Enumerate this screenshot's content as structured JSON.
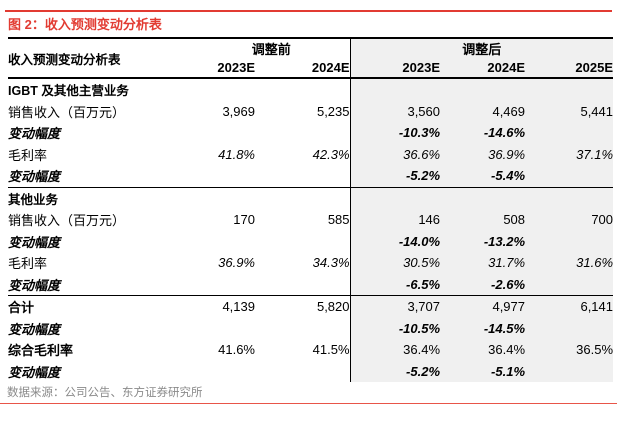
{
  "page": {
    "title": "图 2：收入预测变动分析表",
    "source_note": "数据来源：公司公告、东方证券研究所"
  },
  "colors": {
    "accent_red": "#e23b32",
    "shaded_column_bg": "#f0f0f0",
    "muted_text": "#8a8a8a",
    "table_border": "#000000"
  },
  "table": {
    "corner_label": "收入预测变动分析表",
    "groups": [
      {
        "label": "调整前",
        "span": 2
      },
      {
        "label": "调整后",
        "span": 3
      }
    ],
    "year_headers": [
      "2023E",
      "2024E",
      "2023E",
      "2024E",
      "2025E"
    ],
    "rows": [
      {
        "label": "IGBT 及其他主营业务",
        "style": "section",
        "divider": false,
        "values": [
          "",
          "",
          "",
          "",
          ""
        ]
      },
      {
        "label": "销售收入（百万元）",
        "style": "plain",
        "divider": false,
        "values": [
          "3,969",
          "5,235",
          "3,560",
          "4,469",
          "5,441"
        ]
      },
      {
        "label": "变动幅度",
        "style": "delta",
        "divider": false,
        "values": [
          "",
          "",
          "-10.3%",
          "-14.6%",
          ""
        ]
      },
      {
        "label": "毛利率",
        "style": "rate",
        "divider": false,
        "values": [
          "41.8%",
          "42.3%",
          "36.6%",
          "36.9%",
          "37.1%"
        ]
      },
      {
        "label": "变动幅度",
        "style": "delta",
        "divider": false,
        "values": [
          "",
          "",
          "-5.2%",
          "-5.4%",
          ""
        ]
      },
      {
        "label": "其他业务",
        "style": "section",
        "divider": true,
        "values": [
          "",
          "",
          "",
          "",
          ""
        ]
      },
      {
        "label": "销售收入（百万元）",
        "style": "plain",
        "divider": false,
        "values": [
          "170",
          "585",
          "146",
          "508",
          "700"
        ]
      },
      {
        "label": "变动幅度",
        "style": "delta",
        "divider": false,
        "values": [
          "",
          "",
          "-14.0%",
          "-13.2%",
          ""
        ]
      },
      {
        "label": "毛利率",
        "style": "rate",
        "divider": false,
        "values": [
          "36.9%",
          "34.3%",
          "30.5%",
          "31.7%",
          "31.6%"
        ]
      },
      {
        "label": "变动幅度",
        "style": "delta",
        "divider": false,
        "values": [
          "",
          "",
          "-6.5%",
          "-2.6%",
          ""
        ]
      },
      {
        "label": "合计",
        "style": "total",
        "divider": true,
        "values": [
          "4,139",
          "5,820",
          "3,707",
          "4,977",
          "6,141"
        ]
      },
      {
        "label": "变动幅度",
        "style": "delta",
        "divider": false,
        "values": [
          "",
          "",
          "-10.5%",
          "-14.5%",
          ""
        ]
      },
      {
        "label": "综合毛利率",
        "style": "total",
        "divider": false,
        "values": [
          "41.6%",
          "41.5%",
          "36.4%",
          "36.4%",
          "36.5%"
        ]
      },
      {
        "label": "变动幅度",
        "style": "delta",
        "divider": false,
        "values": [
          "",
          "",
          "-5.2%",
          "-5.1%",
          ""
        ]
      }
    ]
  }
}
